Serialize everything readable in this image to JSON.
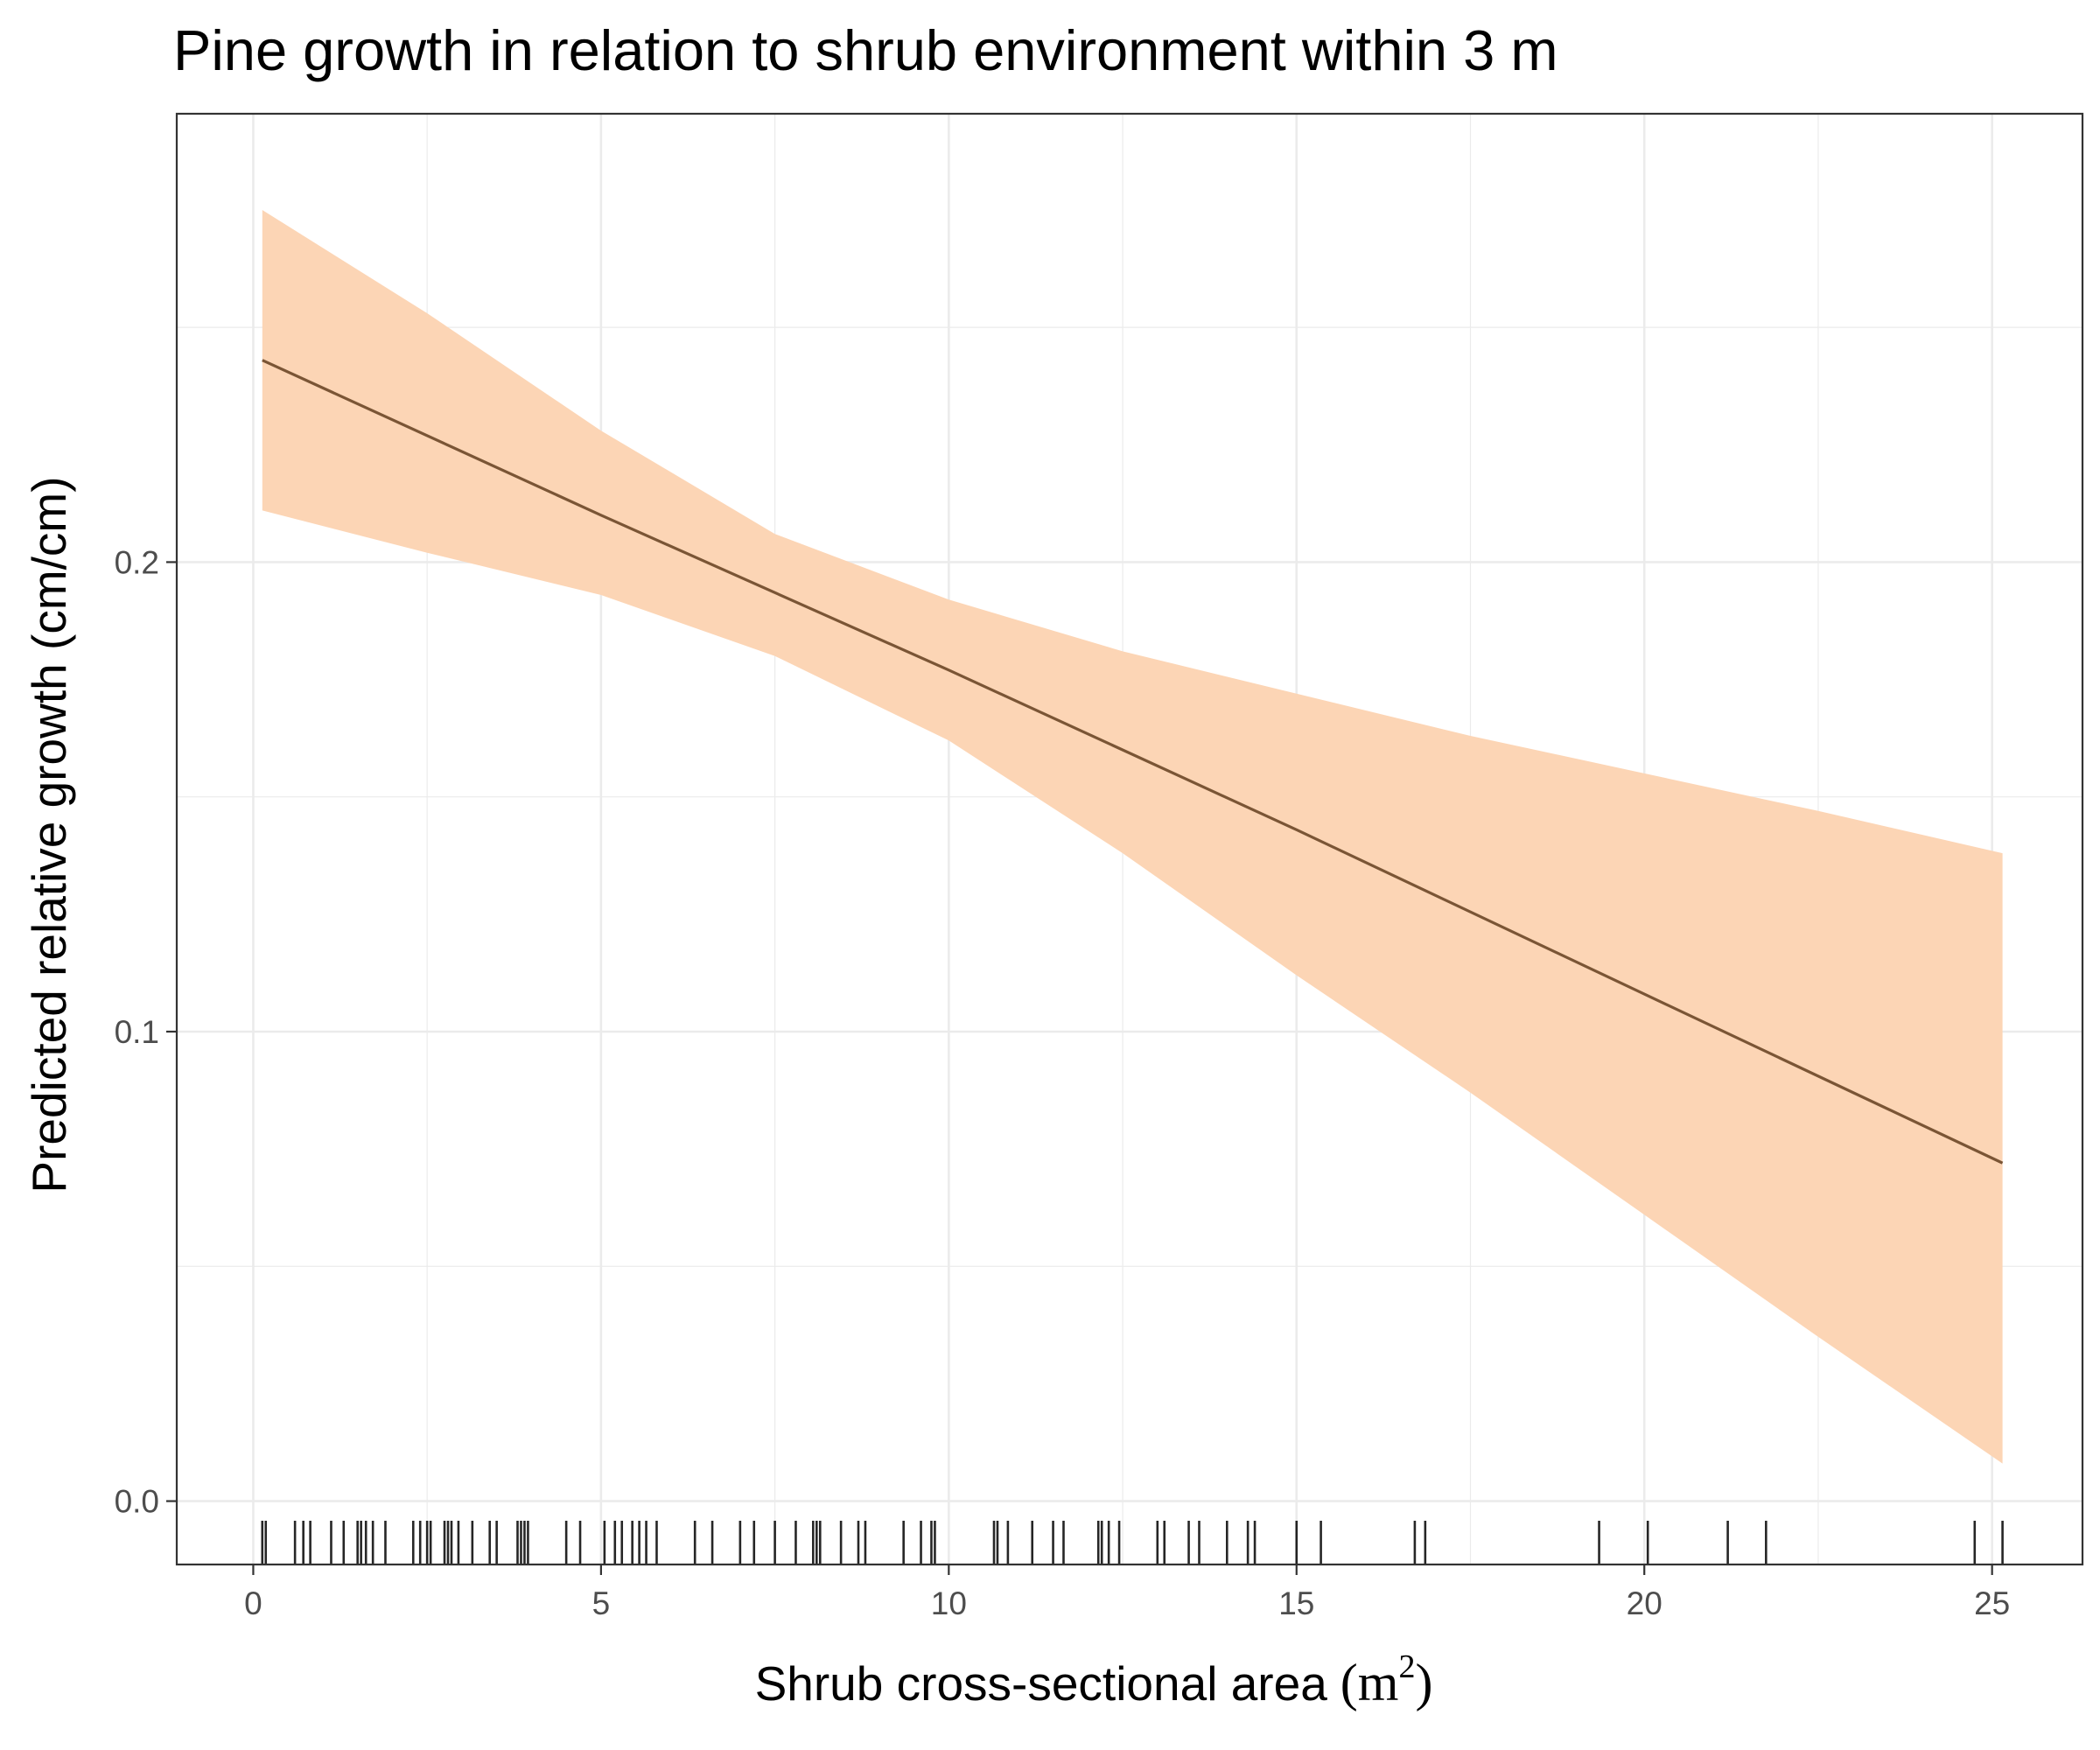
{
  "chart_data": {
    "type": "line",
    "title": "Pine growth in relation to shrub environment within 3 m",
    "xlabel": "Shrub cross-sectional area",
    "xlabel_unit_base": "m",
    "xlabel_unit_exponent": "2",
    "ylabel": "Predicted relative growth (cm/cm)",
    "xlim": [
      -1.1,
      26.3
    ],
    "ylim": [
      -0.0135,
      0.2955
    ],
    "x_ticks": [
      0,
      5,
      10,
      15,
      20,
      25
    ],
    "x_tick_labels": [
      "0",
      "5",
      "10",
      "15",
      "20",
      "25"
    ],
    "y_ticks": [
      0.0,
      0.1,
      0.2
    ],
    "y_tick_labels": [
      "0.0",
      "0.1",
      "0.2"
    ],
    "grid": true,
    "colors": {
      "line": "#7a5535",
      "ribbon": "#fcd5b5",
      "rug": "#000000",
      "grid": "#ebebeb",
      "panel_border": "#333333"
    },
    "series": [
      {
        "x": [
          0.13,
          5,
          10,
          15,
          20,
          25.15
        ],
        "y": [
          0.243,
          0.21,
          0.177,
          0.143,
          0.108,
          0.072
        ]
      }
    ],
    "confidence_band": {
      "x": [
        0.13,
        2.5,
        5,
        7.5,
        10,
        12.5,
        15,
        17.5,
        20,
        22.5,
        25.15
      ],
      "upper": [
        0.275,
        0.253,
        0.228,
        0.206,
        0.192,
        0.181,
        0.172,
        0.163,
        0.155,
        0.147,
        0.138
      ],
      "lower": [
        0.211,
        0.202,
        0.193,
        0.18,
        0.162,
        0.138,
        0.112,
        0.087,
        0.061,
        0.035,
        0.008
      ]
    },
    "rug_x": [
      0.13,
      0.18,
      0.6,
      0.72,
      0.82,
      1.12,
      1.3,
      1.5,
      1.55,
      1.62,
      1.72,
      1.9,
      2.3,
      2.4,
      2.5,
      2.55,
      2.75,
      2.8,
      2.85,
      2.95,
      3.15,
      3.4,
      3.5,
      3.8,
      3.85,
      3.9,
      3.95,
      4.5,
      4.7,
      5.05,
      5.2,
      5.3,
      5.45,
      5.55,
      5.65,
      5.8,
      6.35,
      6.6,
      7.0,
      7.2,
      7.5,
      7.8,
      8.05,
      8.1,
      8.15,
      8.45,
      8.7,
      8.8,
      9.35,
      9.6,
      9.75,
      9.8,
      10.65,
      10.7,
      10.85,
      11.2,
      11.5,
      11.65,
      12.15,
      12.2,
      12.3,
      12.45,
      13.0,
      13.1,
      13.45,
      13.6,
      14.0,
      14.3,
      14.4,
      15.0,
      15.35,
      16.7,
      16.85,
      19.35,
      20.05,
      21.2,
      21.75,
      24.75,
      25.15
    ]
  }
}
